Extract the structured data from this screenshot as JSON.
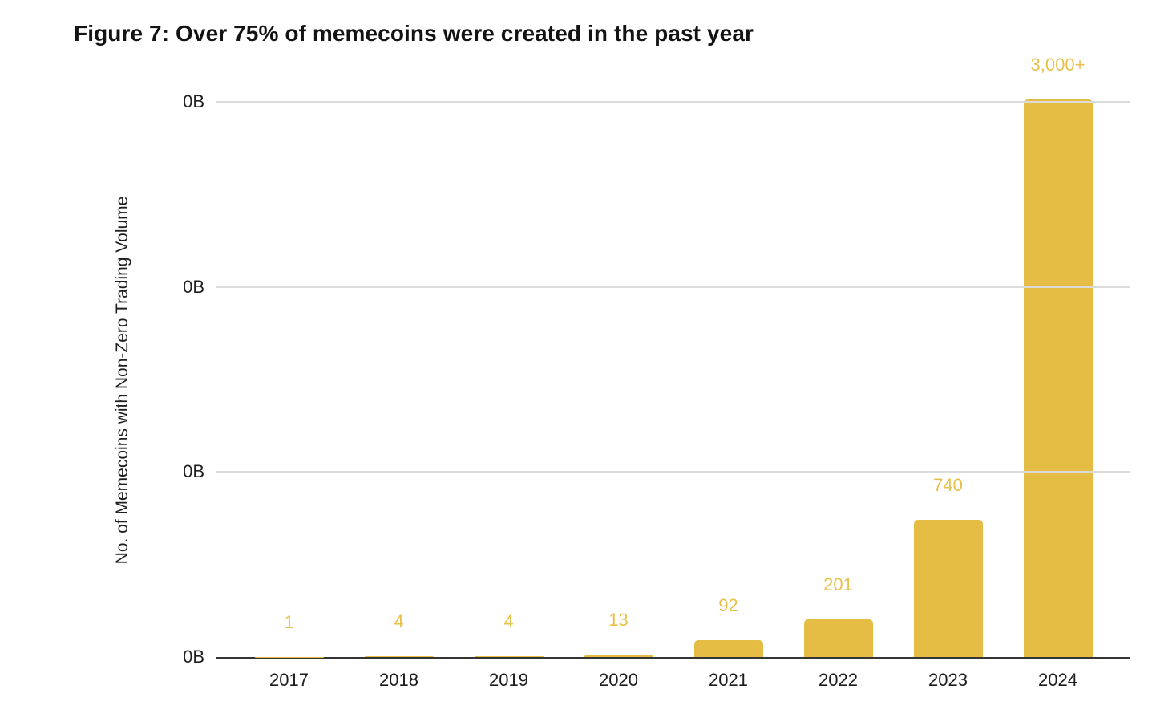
{
  "figure": {
    "title": "Figure 7: Over 75% of memecoins were created in the past year"
  },
  "chart_data": {
    "type": "bar",
    "title": "Figure 7: Over 75% of memecoins were created in the past year",
    "categories": [
      "2017",
      "2018",
      "2019",
      "2020",
      "2021",
      "2022",
      "2023",
      "2024"
    ],
    "values": [
      1,
      4,
      4,
      13,
      92,
      201,
      740,
      3000
    ],
    "value_labels": [
      "1",
      "4",
      "4",
      "13",
      "92",
      "201",
      "740",
      "3,000+"
    ],
    "xlabel": "",
    "ylabel": "No. of Memecoins with Non-Zero Trading Volume",
    "ylim": [
      0,
      3000
    ],
    "y_tick_labels": [
      "0B",
      "0B",
      "0B",
      "0B"
    ],
    "grid": "horizontal",
    "legend_position": "none",
    "colors": {
      "bar": "#E5BD44",
      "value_label": "#E8C14D",
      "gridline": "#DBDBDB",
      "axis_line": "#353535",
      "text": "#1f1f1f"
    }
  }
}
